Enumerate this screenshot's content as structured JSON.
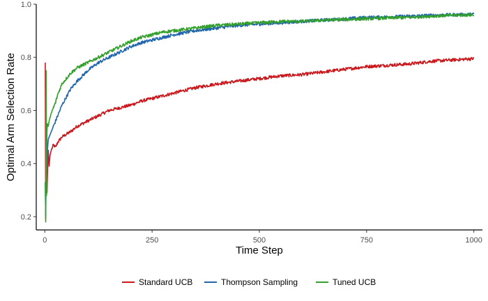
{
  "chart_data": {
    "type": "line",
    "title": "",
    "xlabel": "Time Step",
    "ylabel": "Optimal Arm Selection Rate",
    "xlim": [
      -20,
      1020
    ],
    "ylim": [
      0.15,
      1.0
    ],
    "x_ticks": [
      0,
      250,
      500,
      750,
      1000
    ],
    "y_ticks": [
      0.2,
      0.4,
      0.6,
      0.8,
      1.0
    ],
    "x_tick_labels": [
      "0",
      "250",
      "500",
      "750",
      "1000"
    ],
    "y_tick_labels": [
      "0.2",
      "0.4",
      "0.6",
      "0.8",
      "1.0"
    ],
    "grid": false,
    "legend_position": "bottom",
    "series": [
      {
        "name": "Standard UCB",
        "color": "#cb181d",
        "x": [
          1,
          2,
          3,
          4,
          5,
          6,
          7,
          8,
          10,
          12,
          15,
          20,
          25,
          30,
          40,
          50,
          60,
          75,
          100,
          125,
          150,
          175,
          200,
          225,
          250,
          275,
          300,
          350,
          400,
          450,
          500,
          550,
          600,
          650,
          700,
          750,
          800,
          850,
          900,
          950,
          1000
        ],
        "y": [
          0.78,
          0.19,
          0.55,
          0.33,
          0.29,
          0.35,
          0.4,
          0.45,
          0.39,
          0.43,
          0.45,
          0.47,
          0.46,
          0.48,
          0.5,
          0.51,
          0.52,
          0.54,
          0.56,
          0.58,
          0.6,
          0.61,
          0.62,
          0.635,
          0.645,
          0.655,
          0.665,
          0.685,
          0.7,
          0.71,
          0.72,
          0.73,
          0.735,
          0.745,
          0.755,
          0.765,
          0.77,
          0.775,
          0.785,
          0.79,
          0.795
        ]
      },
      {
        "name": "Thompson Sampling",
        "color": "#2166ac",
        "x": [
          1,
          2,
          3,
          4,
          5,
          6,
          8,
          10,
          15,
          20,
          25,
          30,
          40,
          50,
          60,
          75,
          100,
          125,
          150,
          175,
          200,
          225,
          250,
          275,
          300,
          350,
          400,
          450,
          500,
          550,
          600,
          650,
          700,
          750,
          800,
          850,
          900,
          950,
          1000
        ],
        "y": [
          0.33,
          0.2,
          0.33,
          0.3,
          0.38,
          0.45,
          0.49,
          0.5,
          0.52,
          0.54,
          0.56,
          0.58,
          0.62,
          0.65,
          0.68,
          0.71,
          0.75,
          0.78,
          0.8,
          0.82,
          0.84,
          0.855,
          0.865,
          0.875,
          0.885,
          0.9,
          0.91,
          0.92,
          0.925,
          0.93,
          0.935,
          0.94,
          0.945,
          0.95,
          0.952,
          0.955,
          0.958,
          0.96,
          0.962
        ]
      },
      {
        "name": "Tuned UCB",
        "color": "#33a02c",
        "x": [
          1,
          2,
          3,
          4,
          5,
          6,
          8,
          10,
          15,
          20,
          25,
          30,
          40,
          50,
          60,
          75,
          100,
          125,
          150,
          175,
          200,
          225,
          250,
          275,
          300,
          350,
          400,
          450,
          500,
          550,
          600,
          650,
          700,
          750,
          800,
          850,
          900,
          950,
          1000
        ],
        "y": [
          0.33,
          0.18,
          0.75,
          0.28,
          0.52,
          0.55,
          0.54,
          0.56,
          0.59,
          0.61,
          0.63,
          0.66,
          0.7,
          0.72,
          0.74,
          0.76,
          0.78,
          0.8,
          0.82,
          0.84,
          0.86,
          0.875,
          0.885,
          0.895,
          0.9,
          0.91,
          0.92,
          0.925,
          0.93,
          0.935,
          0.935,
          0.94,
          0.942,
          0.945,
          0.948,
          0.95,
          0.955,
          0.958,
          0.96
        ]
      }
    ]
  }
}
